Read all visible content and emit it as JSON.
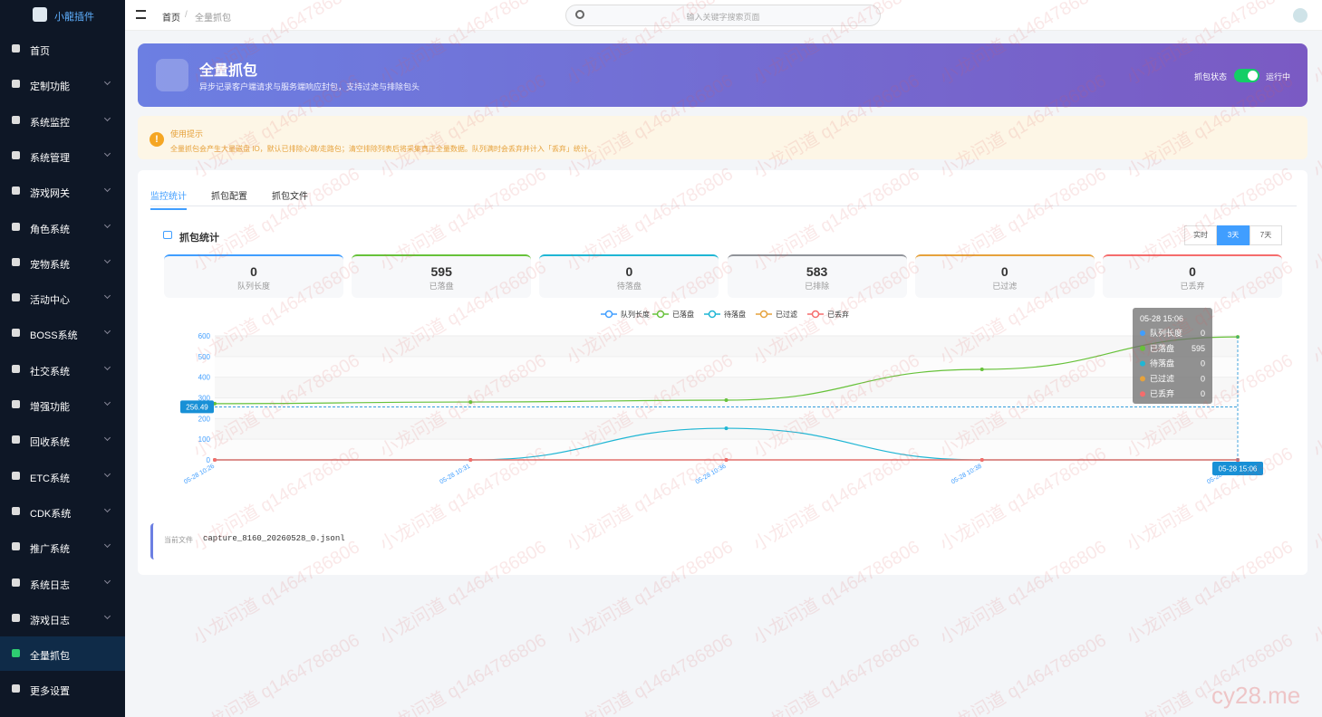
{
  "sidebar": {
    "brand": "小龍插件",
    "menu": [
      {
        "label": "首页"
      },
      {
        "label": "定制功能",
        "submenu": true
      },
      {
        "label": "系统监控",
        "submenu": true
      },
      {
        "label": "系统管理",
        "submenu": true
      },
      {
        "label": "游戏网关",
        "submenu": true
      },
      {
        "label": "角色系统",
        "submenu": true
      },
      {
        "label": "宠物系统",
        "submenu": true
      },
      {
        "label": "活动中心",
        "submenu": true
      },
      {
        "label": "BOSS系统",
        "submenu": true
      },
      {
        "label": "社交系统",
        "submenu": true
      },
      {
        "label": "增强功能",
        "submenu": true
      },
      {
        "label": "回收系统",
        "submenu": true
      },
      {
        "label": "ETC系统",
        "submenu": true
      },
      {
        "label": "CDK系统",
        "submenu": true
      },
      {
        "label": "推广系统",
        "submenu": true
      },
      {
        "label": "系统日志",
        "submenu": true
      },
      {
        "label": "游戏日志",
        "submenu": true
      },
      {
        "label": "全量抓包",
        "active": true
      },
      {
        "label": "更多设置"
      }
    ]
  },
  "header": {
    "breadcrumb": [
      "首页",
      "全量抓包"
    ],
    "search_placeholder": "输入关键字搜索页面"
  },
  "banner": {
    "title": "全量抓包",
    "subtitle": "异步记录客户端请求与服务端响应封包，支持过滤与排除包头",
    "status_label": "抓包状态",
    "status_text": "运行中",
    "status_on": true
  },
  "tip": {
    "title": "使用提示",
    "text": "全量抓包会产生大量磁盘 IO，默认已排除心跳/走路包；清空排除列表后将采集真正全量数据。队列满时会丢弃并计入「丢弃」统计。"
  },
  "tabs": [
    {
      "label": "监控统计",
      "active": true
    },
    {
      "label": "抓包配置"
    },
    {
      "label": "抓包文件"
    }
  ],
  "stats_title": "抓包统计",
  "ranges": [
    {
      "label": "实时"
    },
    {
      "label": "3天",
      "active": true
    },
    {
      "label": "7天"
    }
  ],
  "stats": [
    {
      "value": 0,
      "label": "队列长度",
      "color": "#409eff"
    },
    {
      "value": 595,
      "label": "已落盘",
      "color": "#67c23a"
    },
    {
      "value": 0,
      "label": "待落盘",
      "color": "#1fb6d4"
    },
    {
      "value": 583,
      "label": "已排除",
      "color": "#909399"
    },
    {
      "value": 0,
      "label": "已过滤",
      "color": "#e6a23c"
    },
    {
      "value": 0,
      "label": "已丢弃",
      "color": "#f56c6c"
    }
  ],
  "chart_data": {
    "type": "line",
    "categories": [
      "05-28 10:26",
      "05-28 10:31",
      "05-28 10:36",
      "05-28 10:38",
      "05-28 15:06"
    ],
    "series": [
      {
        "name": "队列长度",
        "color": "#409eff",
        "values": [
          0,
          0,
          0,
          0,
          0
        ]
      },
      {
        "name": "已落盘",
        "color": "#67c23a",
        "values": [
          272,
          280,
          289,
          438,
          595
        ]
      },
      {
        "name": "待落盘",
        "color": "#1fb6d4",
        "values": [
          0,
          0,
          153,
          0,
          0
        ]
      },
      {
        "name": "已过滤",
        "color": "#e6a23c",
        "values": [
          0,
          0,
          0,
          0,
          0
        ]
      },
      {
        "name": "已丢弃",
        "color": "#f56c6c",
        "values": [
          0,
          0,
          0,
          0,
          0
        ]
      }
    ],
    "ylim": [
      0,
      600
    ],
    "yticks": [
      0,
      100,
      200,
      300,
      400,
      500,
      600
    ],
    "grid": true,
    "axis_pointer": {
      "y": 256.49
    }
  },
  "file": {
    "label": "当前文件",
    "name": "capture_8160_20260528_0.jsonl"
  },
  "watermark": "小龙问道 q1464786806",
  "site": "cy28.me"
}
